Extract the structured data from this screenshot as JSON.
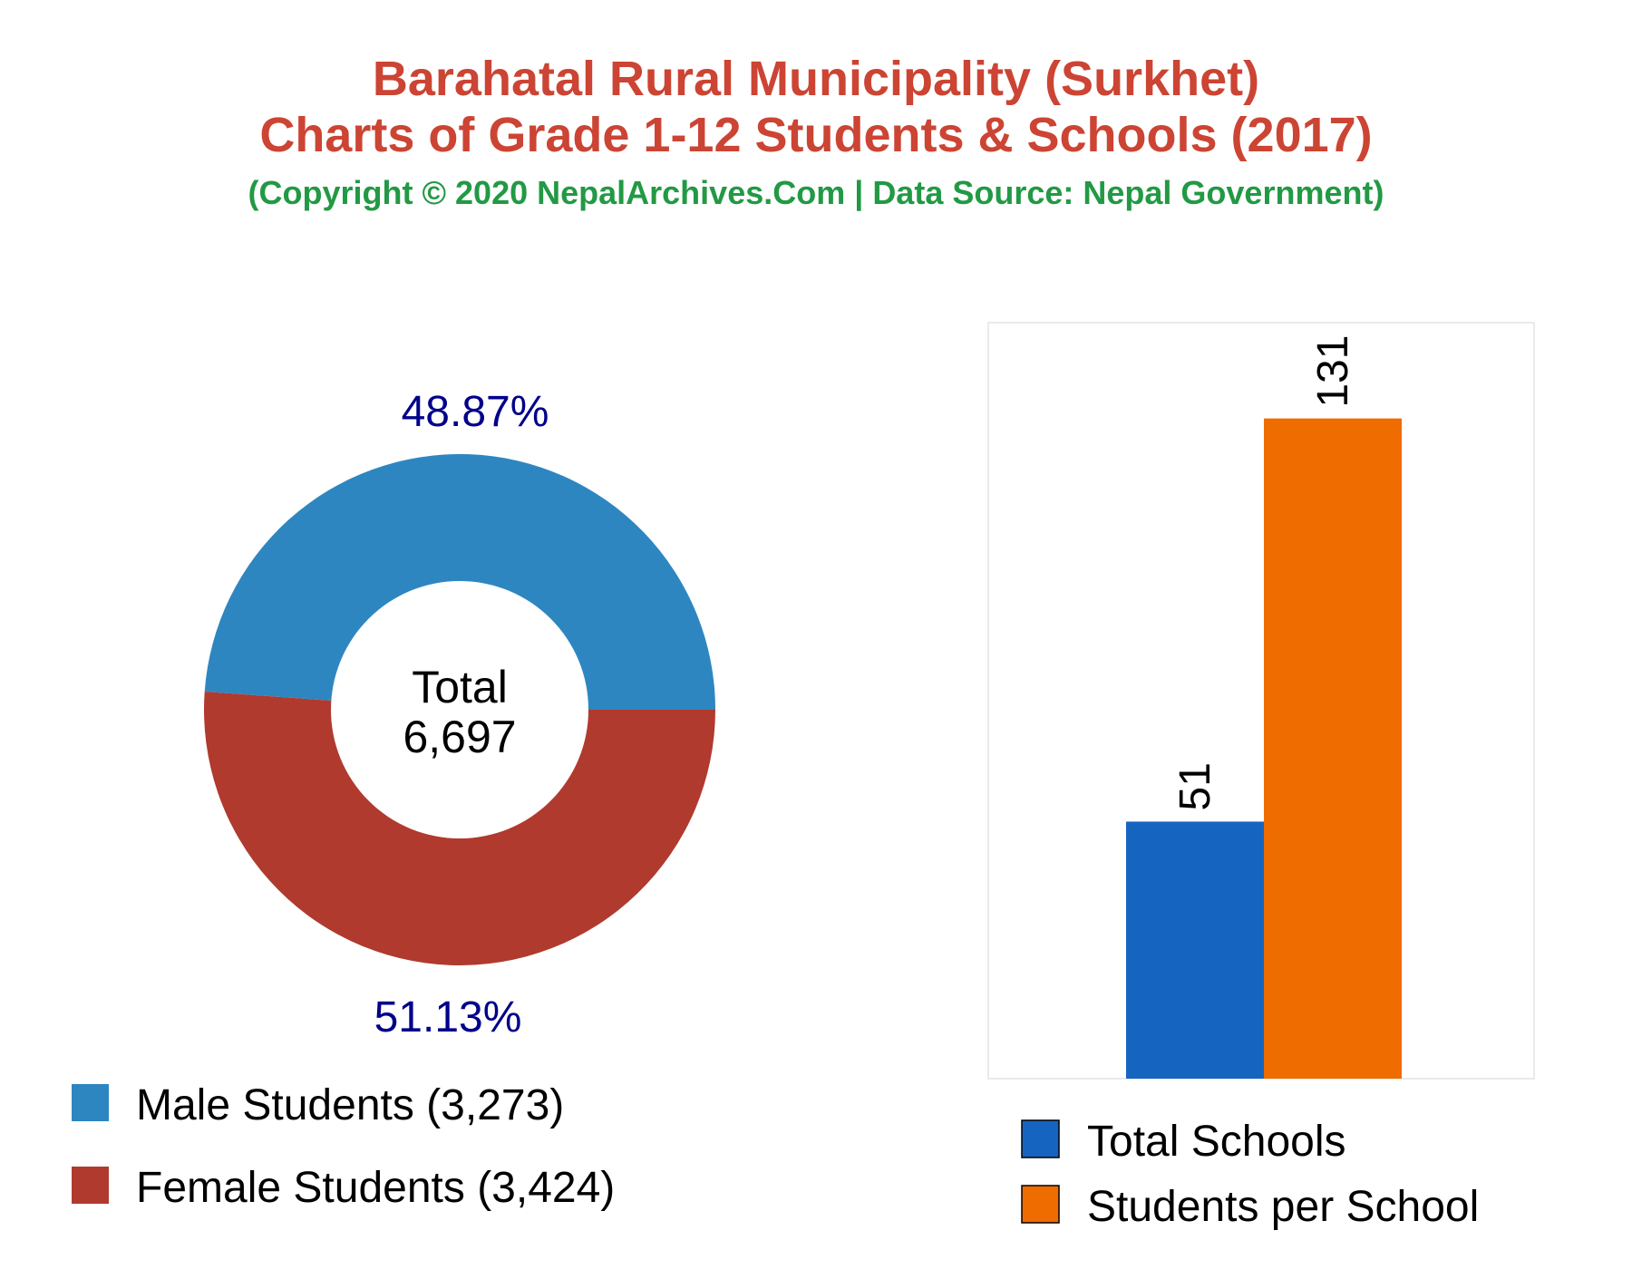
{
  "title": {
    "line1": "Barahatal Rural Municipality (Surkhet)",
    "line2": "Charts of Grade 1-12 Students & Schools (2017)",
    "subtitle": "(Copyright © 2020 NepalArchives.Com | Data Source: Nepal Government)"
  },
  "colors": {
    "title": "#cc4433",
    "subtitle": "#229944",
    "male": "#2e86c1",
    "female": "#b03a2e",
    "schools": "#1565c0",
    "per_school": "#ef6c00",
    "pct_text": "#00008b"
  },
  "chart_data": [
    {
      "type": "pie",
      "donut": true,
      "center_label": {
        "line1": "Total",
        "line2": "6,697"
      },
      "slices": [
        {
          "name": "Male Students",
          "value": 3273,
          "percent_label": "48.87%",
          "legend_label": "Male Students (3,273)"
        },
        {
          "name": "Female Students",
          "value": 3424,
          "percent_label": "51.13%",
          "legend_label": "Female Students (3,424)"
        }
      ]
    },
    {
      "type": "bar",
      "categories": [
        "Total Schools",
        "Students per School"
      ],
      "values": [
        51,
        131
      ],
      "value_labels": [
        "51",
        "131"
      ],
      "legend": [
        "Total Schools",
        "Students per School"
      ],
      "ylim": [
        0,
        150
      ],
      "grid": false,
      "legend_position": "bottom"
    }
  ]
}
